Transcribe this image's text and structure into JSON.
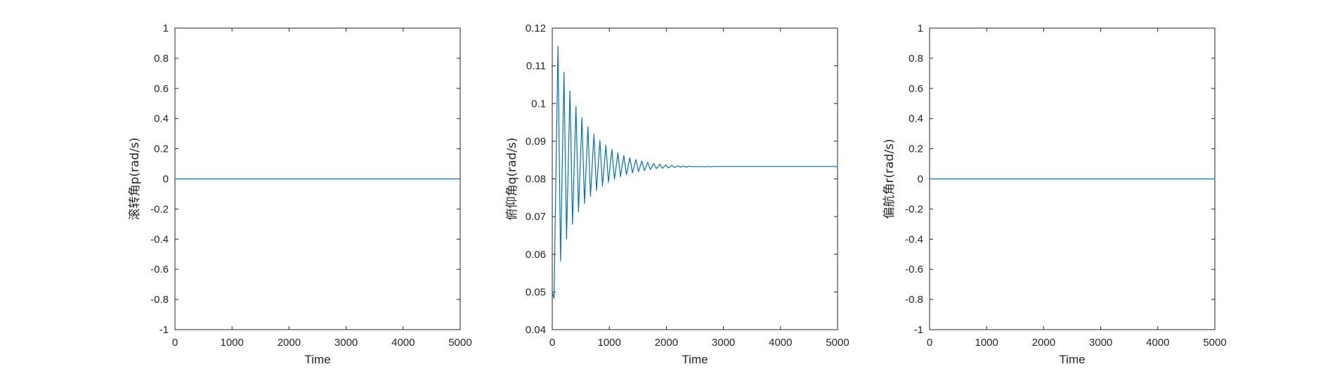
{
  "chart_data": [
    {
      "type": "line",
      "title": "",
      "xlabel": "Time",
      "ylabel": "滚转角p(rad/s)",
      "xlim": [
        0,
        5000
      ],
      "ylim": [
        -1,
        1
      ],
      "xticks": [
        "0",
        "1000",
        "2000",
        "3000",
        "4000",
        "5000"
      ],
      "yticks": [
        "-1",
        "-0.8",
        "-0.6",
        "-0.4",
        "-0.2",
        "0",
        "0.2",
        "0.4",
        "0.6",
        "0.8",
        "1"
      ],
      "grid": false,
      "line_color": "#0072BD",
      "series": [
        {
          "x": [
            0,
            5000
          ],
          "values": [
            0,
            0
          ]
        }
      ]
    },
    {
      "type": "line",
      "title": "",
      "xlabel": "Time",
      "ylabel": "俯仰角q(rad/s)",
      "xlim": [
        0,
        5000
      ],
      "ylim": [
        0.04,
        0.12
      ],
      "xticks": [
        "0",
        "1000",
        "2000",
        "3000",
        "4000",
        "5000"
      ],
      "yticks": [
        "0.04",
        "0.05",
        "0.06",
        "0.07",
        "0.08",
        "0.09",
        "0.1",
        "0.11",
        "0.12"
      ],
      "grid": false,
      "line_color": "#0072BD",
      "series": [
        {
          "description": "damped oscillation settling to a steady value",
          "x": [
            0,
            30,
            100,
            145,
            205,
            250,
            310,
            355,
            415,
            460,
            520,
            565,
            625,
            670,
            730,
            775,
            835,
            880,
            940,
            985,
            1045,
            1090,
            1150,
            1195,
            1255,
            1300,
            1360,
            1405,
            1465,
            1510,
            1570,
            1615,
            1675,
            1720,
            1780,
            1825,
            1885,
            1930,
            1990,
            2035,
            2095,
            2140,
            2200,
            2245,
            2305,
            2350,
            2410,
            2455,
            2515,
            2560,
            2620,
            2665,
            2725,
            2770,
            2830,
            2875,
            2935,
            2980,
            3040,
            3085,
            3145,
            3190,
            3250,
            3295,
            3355,
            3400,
            3460,
            3505,
            3565,
            3610,
            3670,
            3715,
            3775,
            3820,
            3880,
            3925,
            3985,
            4030,
            4090,
            4135,
            4195,
            4240,
            4300,
            4345,
            4405,
            4450,
            4510,
            4555,
            4615,
            4660,
            4720,
            4765,
            4825,
            4870,
            4930,
            4975,
            5000
          ],
          "values": [
            0.05,
            0.0483,
            0.1152,
            0.0582,
            0.1083,
            0.064,
            0.1033,
            0.068,
            0.0992,
            0.0712,
            0.0962,
            0.0735,
            0.0938,
            0.0754,
            0.0918,
            0.0769,
            0.0902,
            0.0781,
            0.0889,
            0.0791,
            0.0878,
            0.0799,
            0.0869,
            0.0806,
            0.0862,
            0.0811,
            0.0856,
            0.0816,
            0.0851,
            0.0819,
            0.0847,
            0.0822,
            0.0844,
            0.0825,
            0.0841,
            0.0827,
            0.0839,
            0.0828,
            0.0837,
            0.0829,
            0.0836,
            0.083,
            0.0835,
            0.0831,
            0.0834,
            0.0831,
            0.0834,
            0.0832,
            0.0833,
            0.0832,
            0.0833,
            0.0832,
            0.0833,
            0.0832,
            0.0833,
            0.0833,
            0.0833,
            0.0833,
            0.0833,
            0.0833,
            0.0833,
            0.0833,
            0.0833,
            0.0833,
            0.0833,
            0.0833,
            0.0833,
            0.0833,
            0.0833,
            0.0833,
            0.0833,
            0.0833,
            0.0833,
            0.0833,
            0.0833,
            0.0833,
            0.0833,
            0.0833,
            0.0833,
            0.0833,
            0.0833,
            0.0833,
            0.0833,
            0.0833,
            0.0833,
            0.0833,
            0.0833,
            0.0833,
            0.0833,
            0.0833,
            0.0833,
            0.0833,
            0.0833,
            0.0833,
            0.0833,
            0.0833,
            0.0833
          ]
        }
      ]
    },
    {
      "type": "line",
      "title": "",
      "xlabel": "Time",
      "ylabel": "偏航角r(rad/s)",
      "xlim": [
        0,
        5000
      ],
      "ylim": [
        -1,
        1
      ],
      "xticks": [
        "0",
        "1000",
        "2000",
        "3000",
        "4000",
        "5000"
      ],
      "yticks": [
        "-1",
        "-0.8",
        "-0.6",
        "-0.4",
        "-0.2",
        "0",
        "0.2",
        "0.4",
        "0.6",
        "0.8",
        "1"
      ],
      "grid": false,
      "line_color": "#0072BD",
      "series": [
        {
          "x": [
            0,
            5000
          ],
          "values": [
            0,
            0
          ]
        }
      ]
    }
  ]
}
